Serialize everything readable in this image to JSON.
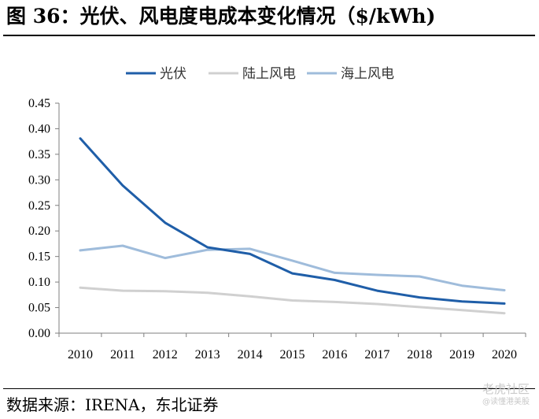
{
  "title": "图 36：光伏、风电度电成本变化情况（$/kWh)",
  "source": "数据来源：IRENA，东北证券",
  "watermark": {
    "line1": "老虎社区",
    "line2": "@读懂港美股"
  },
  "chart_data": {
    "type": "line",
    "x": [
      "2010",
      "2011",
      "2012",
      "2013",
      "2014",
      "2015",
      "2016",
      "2017",
      "2018",
      "2019",
      "2020"
    ],
    "ylim": [
      0,
      0.45
    ],
    "yticks": [
      "0.00",
      "0.05",
      "0.10",
      "0.15",
      "0.20",
      "0.25",
      "0.30",
      "0.35",
      "0.40",
      "0.45"
    ],
    "grid": false,
    "legend_position": "top-center",
    "series": [
      {
        "name": "光伏",
        "color": "#1f5ea8",
        "width": 3,
        "values": [
          0.381,
          0.289,
          0.216,
          0.168,
          0.155,
          0.117,
          0.104,
          0.083,
          0.07,
          0.062,
          0.058
        ]
      },
      {
        "name": "陆上风电",
        "color": "#d0d0d0",
        "width": 3,
        "values": [
          0.089,
          0.083,
          0.082,
          0.079,
          0.072,
          0.064,
          0.061,
          0.057,
          0.051,
          0.045,
          0.039
        ]
      },
      {
        "name": "海上风电",
        "color": "#9fbcdb",
        "width": 3,
        "values": [
          0.162,
          0.171,
          0.147,
          0.163,
          0.165,
          0.142,
          0.118,
          0.114,
          0.111,
          0.093,
          0.084
        ]
      }
    ]
  }
}
